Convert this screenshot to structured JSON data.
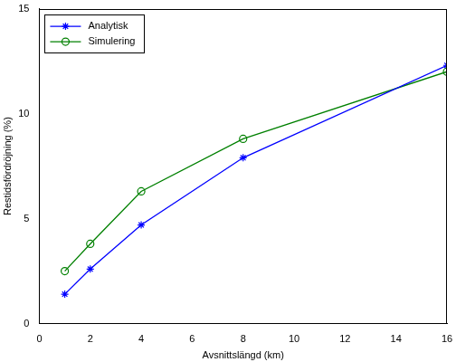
{
  "chart_data": {
    "type": "line",
    "x_label": "Avsnittslängd (km)",
    "y_label": "Restidsfördröjning (%)",
    "x": [
      1,
      2,
      4,
      8,
      16
    ],
    "series": [
      {
        "name": "Analytisk",
        "color": "#0000ff",
        "marker": "star",
        "line_style": "solid",
        "values": [
          1.4,
          2.6,
          4.7,
          7.9,
          12.3
        ]
      },
      {
        "name": "Simulering",
        "color": "#008000",
        "marker": "circle",
        "line_style": "solid",
        "values": [
          2.5,
          3.8,
          6.3,
          8.8,
          12.0
        ]
      }
    ],
    "xlim": [
      0,
      16
    ],
    "xticks": [
      0,
      2,
      4,
      6,
      8,
      10,
      12,
      14,
      16
    ],
    "ylim": [
      0,
      15
    ],
    "yticks": [
      0,
      5,
      10,
      15
    ],
    "grid": false,
    "legend": "upper left"
  }
}
